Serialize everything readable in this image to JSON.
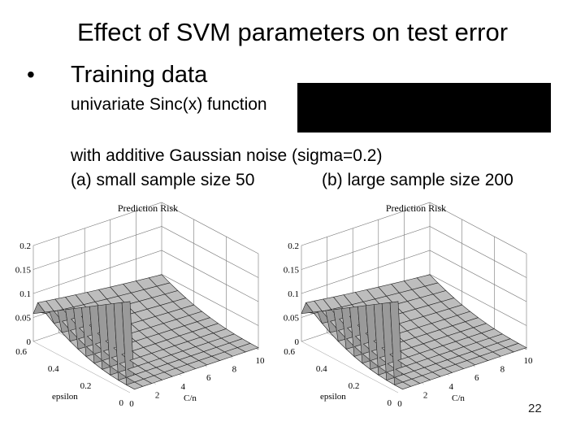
{
  "slide": {
    "title": "Effect of SVM parameters on test error",
    "bullet_symbol": "•",
    "heading": "Training data",
    "line1": "univariate Sinc(x) function",
    "line2": "with additive Gaussian noise (sigma=0.2)",
    "line3a": "(a) small sample size 50",
    "line3b": "(b) large sample size 200",
    "page_number": "22"
  },
  "chart_data": [
    {
      "type": "surface",
      "panel": "(a)",
      "title": "Prediction Risk",
      "xlabel": "C/n",
      "ylabel": "epsilon",
      "z_ticks": [
        "0",
        "0.05",
        "0.1",
        "0.15",
        "0.2"
      ],
      "x_ticks": [
        "0",
        "2",
        "4",
        "6",
        "8",
        "10"
      ],
      "y_ticks": [
        "0",
        "0.2",
        "0.4",
        "0.6"
      ],
      "zlim": [
        0,
        0.2
      ]
    },
    {
      "type": "surface",
      "panel": "(b)",
      "title": "Prediction Risk",
      "xlabel": "C/n",
      "ylabel": "epsilon",
      "z_ticks": [
        "0",
        "0.05",
        "0.1",
        "0.15",
        "0.2"
      ],
      "x_ticks": [
        "0",
        "2",
        "4",
        "6",
        "8",
        "10"
      ],
      "y_ticks": [
        "0",
        "0.2",
        "0.4",
        "0.6"
      ],
      "zlim": [
        0,
        0.2
      ]
    }
  ]
}
